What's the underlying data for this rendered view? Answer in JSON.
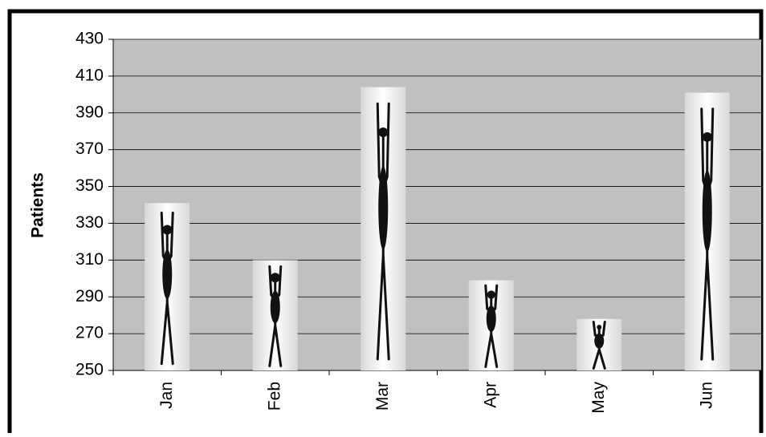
{
  "chart_data": {
    "type": "bar",
    "y_label": "Patients",
    "categories": [
      "Jan",
      "Feb",
      "Mar",
      "Apr",
      "May",
      "Jun"
    ],
    "values": [
      341,
      310,
      404,
      299,
      278,
      401
    ],
    "color": "#f4f4f4",
    "plot_background": "#c0c0c0",
    "ylim": [
      250,
      430
    ],
    "yticks": [
      250,
      270,
      290,
      310,
      330,
      350,
      370,
      390,
      410,
      430
    ],
    "grid": true
  }
}
